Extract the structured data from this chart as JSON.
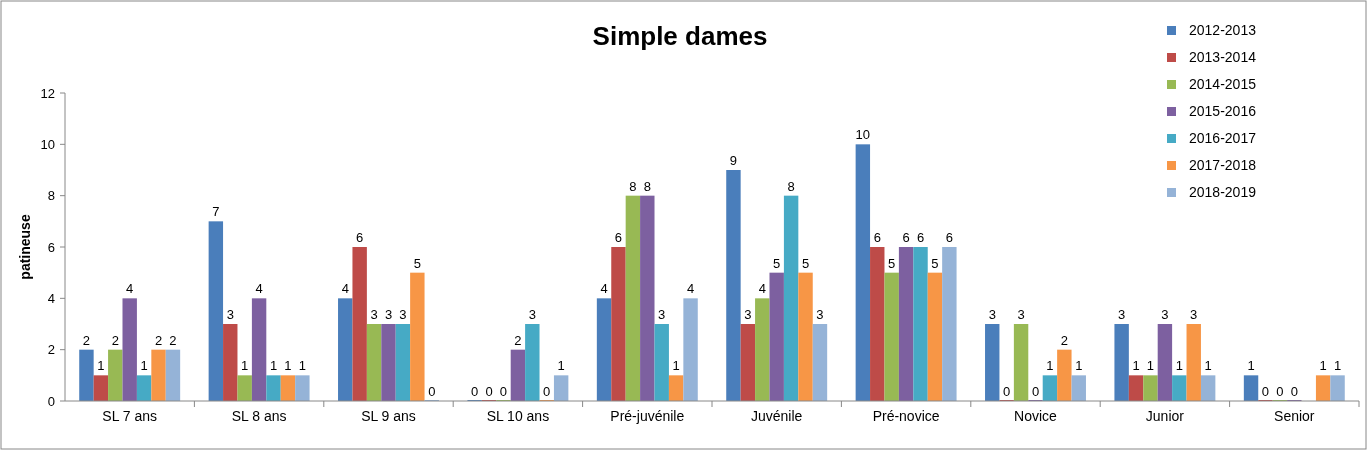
{
  "chart_data": {
    "type": "bar",
    "title": "Simple dames",
    "ylabel": "patineuse",
    "categories": [
      "SL 7 ans",
      "SL 8 ans",
      "SL 9 ans",
      "SL 10 ans",
      "Pré-juvénile",
      "Juvénile",
      "Pré-novice",
      "Novice",
      "Junior",
      "Senior"
    ],
    "series": [
      {
        "name": "2012-2013",
        "color": "#4a7ebb",
        "values": [
          2,
          7,
          4,
          0,
          4,
          9,
          10,
          3,
          3,
          1
        ]
      },
      {
        "name": "2013-2014",
        "color": "#be4b48",
        "values": [
          1,
          3,
          6,
          0,
          6,
          3,
          6,
          0,
          1,
          0
        ]
      },
      {
        "name": "2014-2015",
        "color": "#98b954",
        "values": [
          2,
          1,
          3,
          0,
          8,
          4,
          5,
          3,
          1,
          0
        ]
      },
      {
        "name": "2015-2016",
        "color": "#7d60a0",
        "values": [
          4,
          4,
          3,
          2,
          8,
          5,
          6,
          0,
          3,
          0
        ]
      },
      {
        "name": "2016-2017",
        "color": "#46aac5",
        "values": [
          1,
          1,
          3,
          3,
          3,
          8,
          6,
          1,
          1,
          null
        ]
      },
      {
        "name": "2017-2018",
        "color": "#f79646",
        "values": [
          2,
          1,
          5,
          0,
          1,
          5,
          5,
          2,
          3,
          1
        ]
      },
      {
        "name": "2018-2019",
        "color": "#95b3d7",
        "values": [
          2,
          1,
          0,
          1,
          4,
          3,
          6,
          1,
          1,
          1
        ]
      }
    ],
    "ylim": [
      0,
      12
    ],
    "yticks": [
      0,
      2,
      4,
      6,
      8,
      10,
      12
    ],
    "grid": false,
    "legend": "top right",
    "data_labels": true
  }
}
